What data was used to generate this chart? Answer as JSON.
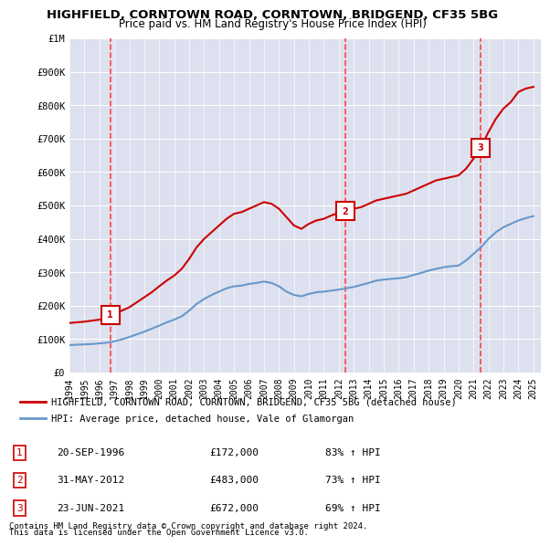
{
  "title": "HIGHFIELD, CORNTOWN ROAD, CORNTOWN, BRIDGEND, CF35 5BG",
  "subtitle": "Price paid vs. HM Land Registry's House Price Index (HPI)",
  "title_fontsize": 11,
  "subtitle_fontsize": 9,
  "background_color": "#ffffff",
  "plot_bg_color": "#e8e8f0",
  "grid_color": "#ffffff",
  "hatch_color": "#d0d0e0",
  "ylim": [
    0,
    1000000
  ],
  "yticks": [
    0,
    100000,
    200000,
    300000,
    400000,
    500000,
    600000,
    700000,
    800000,
    900000,
    1000000
  ],
  "ytick_labels": [
    "£0",
    "£100K",
    "£200K",
    "£300K",
    "£400K",
    "£500K",
    "£600K",
    "£700K",
    "£800K",
    "£900K",
    "£1M"
  ],
  "xlim_start": 1994.0,
  "xlim_end": 2025.5,
  "xtick_years": [
    1994,
    1995,
    1996,
    1997,
    1998,
    1999,
    2000,
    2001,
    2002,
    2003,
    2004,
    2005,
    2006,
    2007,
    2008,
    2009,
    2010,
    2011,
    2012,
    2013,
    2014,
    2015,
    2016,
    2017,
    2018,
    2019,
    2020,
    2021,
    2022,
    2023,
    2024,
    2025
  ],
  "red_line_color": "#cc0000",
  "blue_line_color": "#6699cc",
  "sale_marker_color": "#cc0000",
  "sale_vline_color": "#ff4444",
  "sale_vline_style": "--",
  "sales": [
    {
      "num": 1,
      "year": 1996.72,
      "price": 172000,
      "label": "20-SEP-1996",
      "pct": "83% ↑ HPI"
    },
    {
      "num": 2,
      "year": 2012.41,
      "price": 483000,
      "label": "31-MAY-2012",
      "pct": "73% ↑ HPI"
    },
    {
      "num": 3,
      "year": 2021.47,
      "price": 672000,
      "label": "23-JUN-2021",
      "pct": "69% ↑ HPI"
    }
  ],
  "hpi_red_x": [
    1994.0,
    1994.5,
    1995.0,
    1995.5,
    1996.0,
    1996.5,
    1996.72,
    1997.0,
    1997.5,
    1998.0,
    1998.5,
    1999.0,
    1999.5,
    2000.0,
    2000.5,
    2001.0,
    2001.5,
    2002.0,
    2002.5,
    2003.0,
    2003.5,
    2004.0,
    2004.5,
    2005.0,
    2005.5,
    2006.0,
    2006.5,
    2007.0,
    2007.5,
    2008.0,
    2008.5,
    2009.0,
    2009.5,
    2010.0,
    2010.5,
    2011.0,
    2011.5,
    2012.0,
    2012.41,
    2012.5,
    2013.0,
    2013.5,
    2014.0,
    2014.5,
    2015.0,
    2015.5,
    2016.0,
    2016.5,
    2017.0,
    2017.5,
    2018.0,
    2018.5,
    2019.0,
    2019.5,
    2020.0,
    2020.5,
    2021.0,
    2021.47,
    2021.5,
    2022.0,
    2022.5,
    2023.0,
    2023.5,
    2024.0,
    2024.5,
    2025.0
  ],
  "hpi_red_y": [
    148000,
    150000,
    152000,
    155000,
    158000,
    162000,
    172000,
    175000,
    185000,
    195000,
    210000,
    225000,
    240000,
    258000,
    275000,
    290000,
    310000,
    340000,
    375000,
    400000,
    420000,
    440000,
    460000,
    475000,
    480000,
    490000,
    500000,
    510000,
    505000,
    490000,
    465000,
    440000,
    430000,
    445000,
    455000,
    460000,
    470000,
    478000,
    483000,
    485000,
    490000,
    495000,
    505000,
    515000,
    520000,
    525000,
    530000,
    535000,
    545000,
    555000,
    565000,
    575000,
    580000,
    585000,
    590000,
    610000,
    640000,
    672000,
    675000,
    720000,
    760000,
    790000,
    810000,
    840000,
    850000,
    855000
  ],
  "hpi_blue_x": [
    1994.0,
    1994.5,
    1995.0,
    1995.5,
    1996.0,
    1996.5,
    1997.0,
    1997.5,
    1998.0,
    1998.5,
    1999.0,
    1999.5,
    2000.0,
    2000.5,
    2001.0,
    2001.5,
    2002.0,
    2002.5,
    2003.0,
    2003.5,
    2004.0,
    2004.5,
    2005.0,
    2005.5,
    2006.0,
    2006.5,
    2007.0,
    2007.5,
    2008.0,
    2008.5,
    2009.0,
    2009.5,
    2010.0,
    2010.5,
    2011.0,
    2011.5,
    2012.0,
    2012.5,
    2013.0,
    2013.5,
    2014.0,
    2014.5,
    2015.0,
    2015.5,
    2016.0,
    2016.5,
    2017.0,
    2017.5,
    2018.0,
    2018.5,
    2019.0,
    2019.5,
    2020.0,
    2020.5,
    2021.0,
    2021.5,
    2022.0,
    2022.5,
    2023.0,
    2023.5,
    2024.0,
    2024.5,
    2025.0
  ],
  "hpi_blue_y": [
    82000,
    83000,
    84000,
    85000,
    87000,
    89000,
    93000,
    99000,
    106000,
    114000,
    122000,
    131000,
    140000,
    150000,
    158000,
    168000,
    185000,
    205000,
    220000,
    232000,
    242000,
    252000,
    258000,
    260000,
    265000,
    268000,
    272000,
    268000,
    258000,
    242000,
    232000,
    228000,
    235000,
    240000,
    242000,
    245000,
    248000,
    252000,
    256000,
    262000,
    268000,
    275000,
    278000,
    280000,
    282000,
    285000,
    292000,
    298000,
    305000,
    310000,
    315000,
    318000,
    320000,
    335000,
    355000,
    375000,
    400000,
    420000,
    435000,
    445000,
    455000,
    462000,
    468000
  ],
  "legend_red_label": "HIGHFIELD, CORNTOWN ROAD, CORNTOWN, BRIDGEND, CF35 5BG (detached house)",
  "legend_blue_label": "HPI: Average price, detached house, Vale of Glamorgan",
  "footer1": "Contains HM Land Registry data © Crown copyright and database right 2024.",
  "footer2": "This data is licensed under the Open Government Licence v3.0."
}
